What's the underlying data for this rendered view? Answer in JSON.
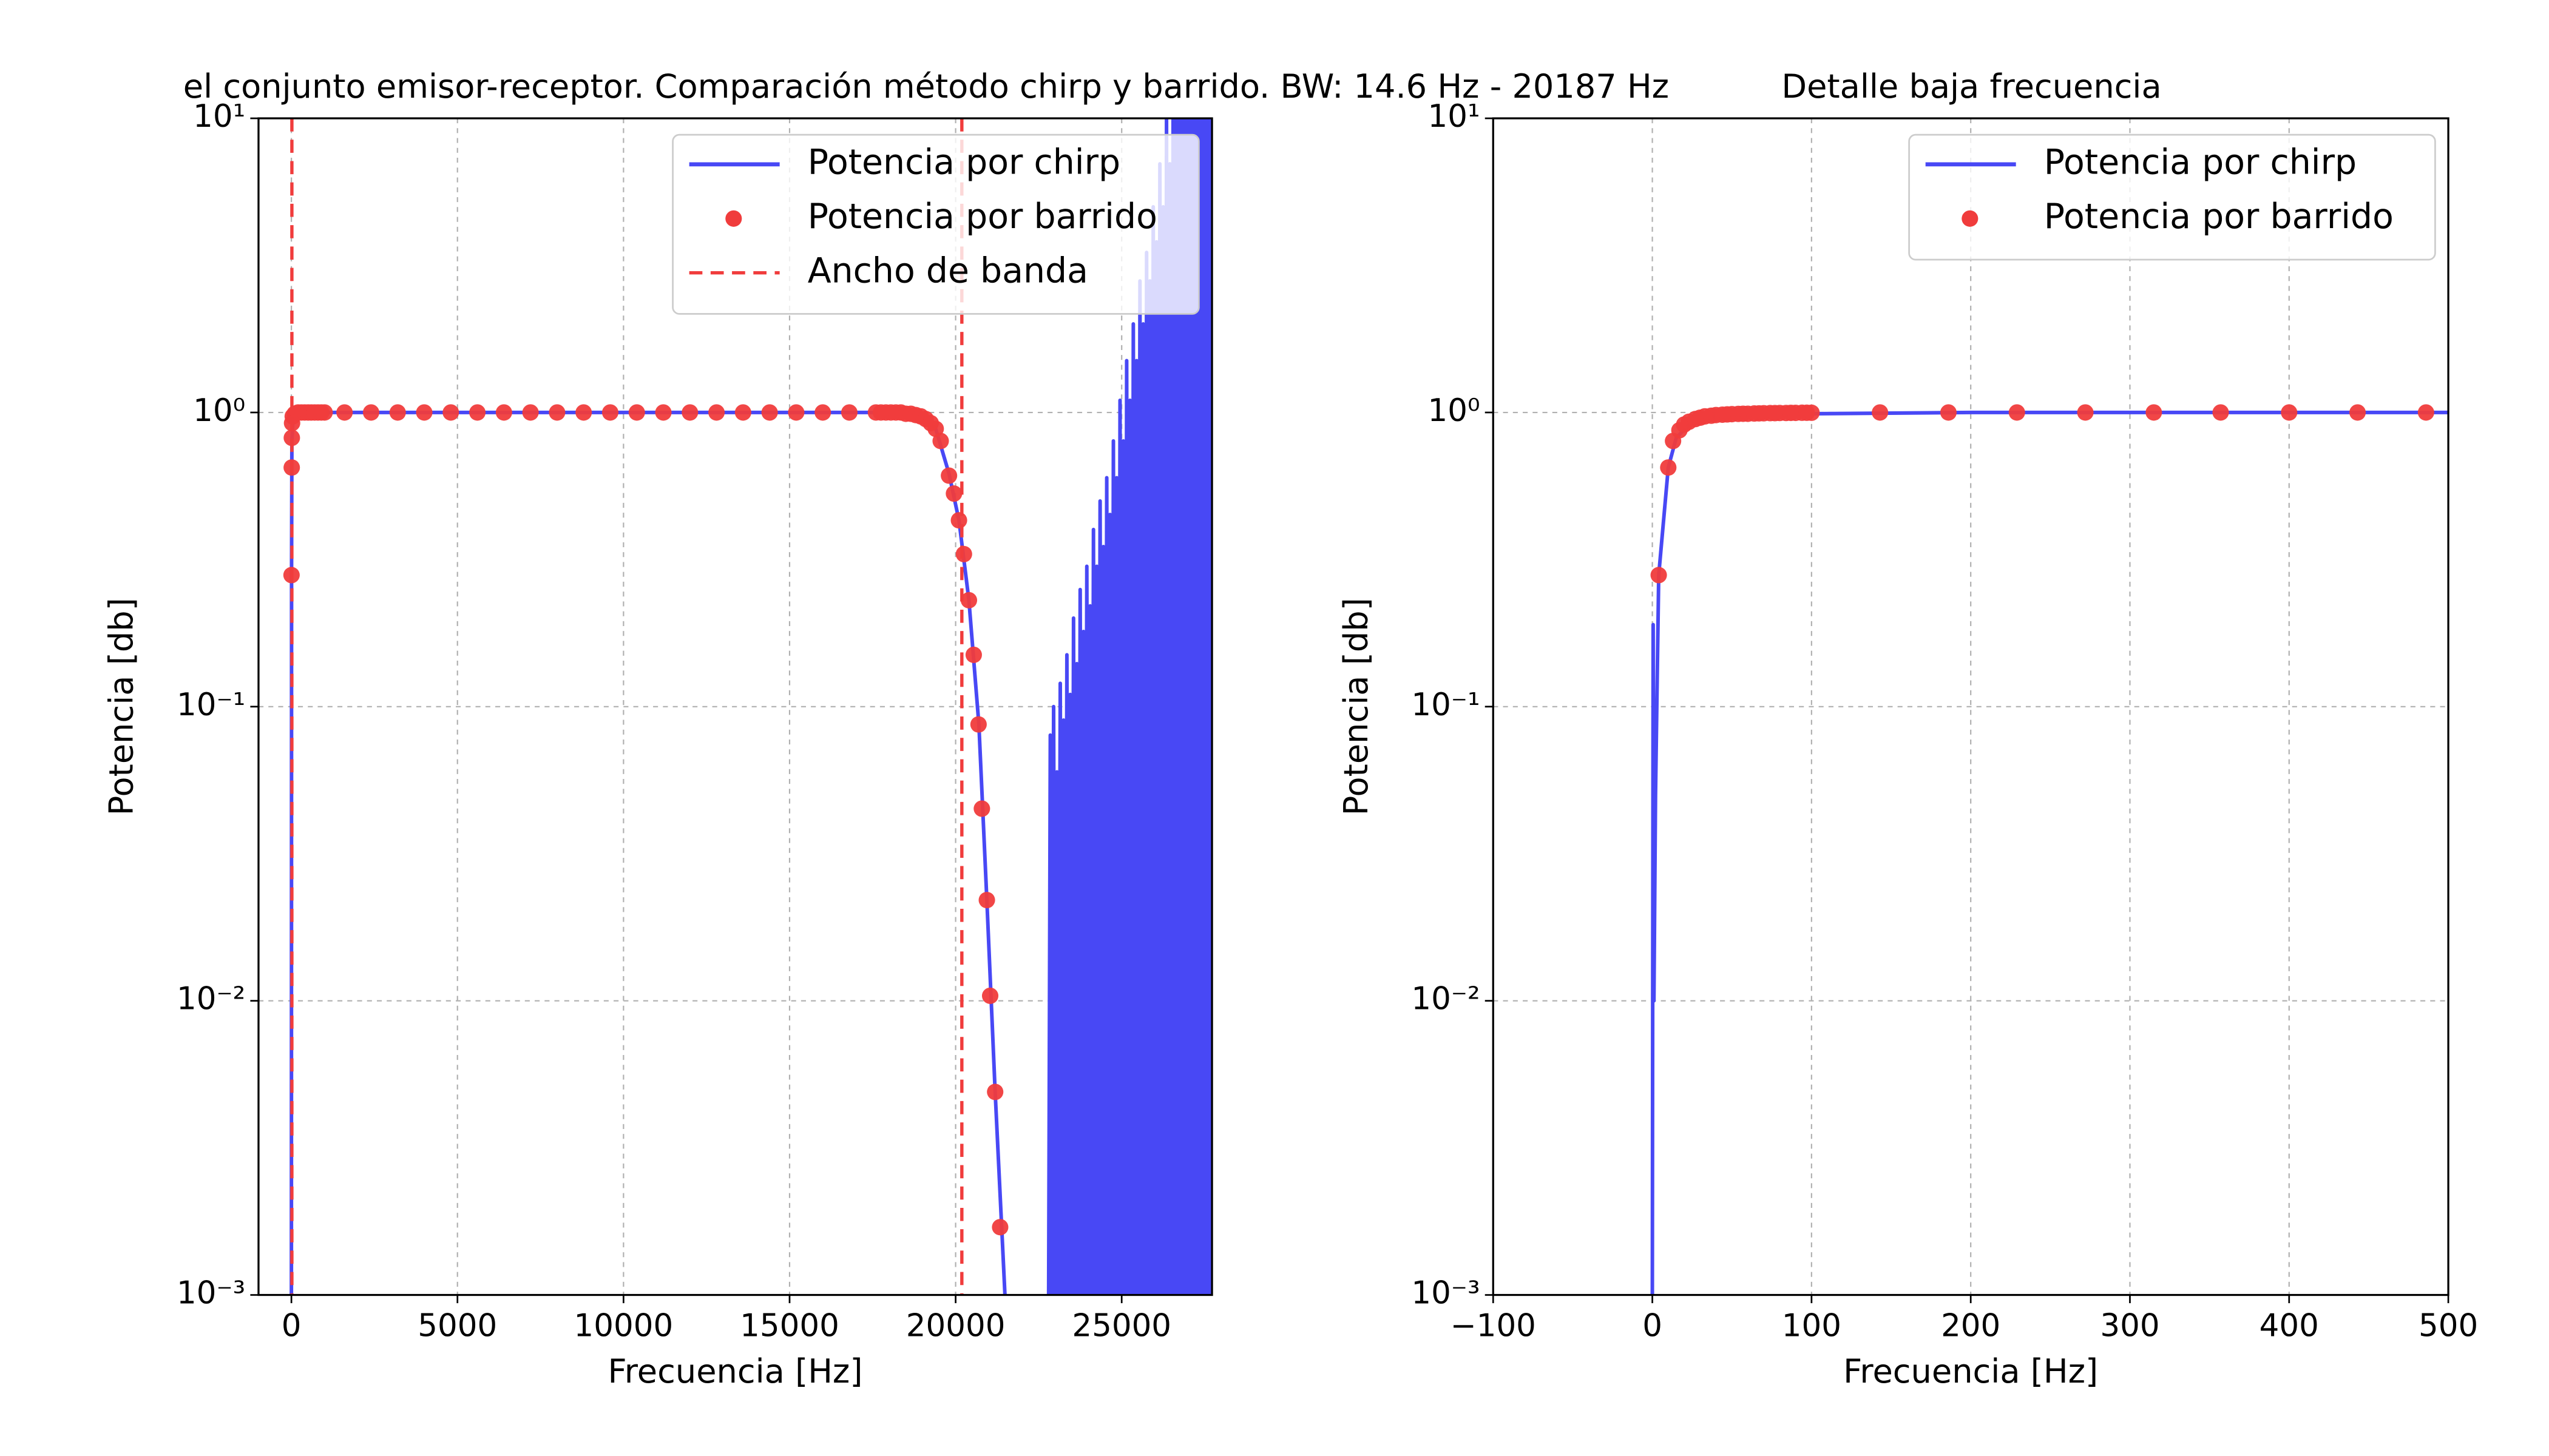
{
  "chart_data": [
    {
      "type": "line",
      "title": "el conjunto emisor-receptor. Comparación método chirp y barrido. BW: 14.6 Hz - 20187 Hz",
      "x_label": "Frecuencia [Hz]",
      "y_label": "Potencia [db]",
      "log_y": true,
      "grid": true,
      "legend": "upper right",
      "xlim": [
        -990,
        27720
      ],
      "ylim": [
        0.001,
        10
      ],
      "xticks": [
        0,
        5000,
        10000,
        15000,
        20000,
        25000
      ],
      "yticks": [
        {
          "value": 0.001,
          "label": "10⁻³"
        },
        {
          "value": 0.01,
          "label": "10⁻²"
        },
        {
          "value": 0.1,
          "label": "10⁻¹"
        },
        {
          "value": 1,
          "label": "10⁰"
        },
        {
          "value": 10,
          "label": "10¹"
        }
      ],
      "series": [
        {
          "name": "Potencia por chirp",
          "style": "line",
          "color": "#4848f5",
          "x": [
            0,
            5,
            15,
            50,
            100,
            1000,
            18000,
            18500,
            19000,
            19400,
            19800,
            20100,
            20400,
            20700,
            20940,
            21190,
            21485,
            22000,
            22800,
            22850,
            22900,
            22950,
            23000,
            23050,
            23100,
            23150,
            23200,
            23250,
            23300,
            23350,
            23400,
            23450,
            23500,
            23550,
            23600,
            23650,
            23700,
            23750,
            23800,
            23850,
            23900,
            23950,
            24000,
            24050,
            24100,
            24150,
            24200,
            24250,
            24300,
            24350,
            24400,
            24450,
            24500,
            24550,
            24600,
            24650,
            24700,
            24750,
            24800,
            24850,
            24900,
            24950,
            25000,
            25050,
            25100,
            25150,
            25200,
            25250,
            25300,
            25350,
            25400,
            25450,
            25500,
            25550,
            25600,
            25650,
            25700,
            25750,
            25800,
            25850,
            25900,
            25950,
            26000,
            26050,
            26100,
            26150,
            26200,
            26250,
            26300,
            26350,
            26400,
            26450,
            26500,
            26550,
            26600,
            26650,
            26700,
            26750,
            26800,
            26850,
            26900,
            26950,
            27000,
            27050,
            27100,
            27150,
            27200,
            27250,
            27300,
            27350,
            27400,
            27450,
            27500,
            27550,
            27600,
            27650,
            27700
          ],
          "values": [
            0.001,
            0.3,
            0.8,
            0.97,
            0.99,
            1,
            1,
            0.99,
            0.97,
            0.88,
            0.62,
            0.43,
            0.23,
            0.087,
            0.022,
            0.0049,
            0.001,
            null,
            0.001,
            0.08,
            0.001,
            0.1,
            0.001,
            0.06,
            0.001,
            0.12,
            0.001,
            0.09,
            0.001,
            0.15,
            0.001,
            0.11,
            0.001,
            0.2,
            0.001,
            0.14,
            0.001,
            0.25,
            0.001,
            0.18,
            0.001,
            0.3,
            0.001,
            0.22,
            0.001,
            0.4,
            0.001,
            0.3,
            0.001,
            0.5,
            0.001,
            0.35,
            0.001,
            0.6,
            0.001,
            0.45,
            0.001,
            0.8,
            0.001,
            0.6,
            0.001,
            1.1,
            0.001,
            0.8,
            0.001,
            1.5,
            0.001,
            1.1,
            0.001,
            2,
            0.001,
            1.5,
            0.001,
            2.8,
            0.001,
            2,
            0.001,
            3.5,
            0.001,
            2.8,
            0.001,
            5,
            0.001,
            3.8,
            0.001,
            7,
            0.001,
            5,
            0.001,
            10,
            0.001,
            7,
            0.001,
            15,
            0.001,
            10,
            0.001,
            20,
            0.001,
            15,
            0.001,
            30,
            0.001,
            20,
            0.001,
            40,
            0.001,
            30,
            0.001,
            50,
            0.001,
            40,
            0.001,
            60,
            0.001,
            50,
            0.001
          ]
        },
        {
          "name": "Potencia por barrido",
          "style": "marker",
          "color": "#f03c3c",
          "x": [
            4,
            10,
            13,
            20,
            40,
            100,
            200,
            300,
            400,
            500,
            600,
            700,
            800,
            900,
            1000,
            1600,
            2400,
            3200,
            4000,
            4800,
            5600,
            6400,
            7200,
            8000,
            8800,
            9600,
            10400,
            11200,
            12000,
            12800,
            13600,
            14400,
            15200,
            16000,
            16800,
            17600,
            17750,
            17900,
            18050,
            18200,
            18350,
            18500,
            18650,
            18800,
            18950,
            19100,
            19250,
            19400,
            19550,
            19800,
            19950,
            20100,
            20250,
            20400,
            20545,
            20690,
            20790,
            20940,
            21040,
            21190,
            21340
          ],
          "values": [
            0.28,
            0.65,
            0.82,
            0.92,
            0.97,
            0.99,
            1,
            1,
            1,
            1,
            1,
            1,
            1,
            1,
            1,
            1,
            1,
            1,
            1,
            1,
            1,
            1,
            1,
            1,
            1,
            1,
            1,
            1,
            1,
            1,
            1,
            1,
            1,
            1,
            1,
            1,
            1,
            1,
            1,
            1,
            1,
            0.99,
            0.99,
            0.98,
            0.97,
            0.95,
            0.92,
            0.88,
            0.8,
            0.61,
            0.53,
            0.43,
            0.33,
            0.23,
            0.15,
            0.087,
            0.045,
            0.022,
            0.0104,
            0.0049,
            0.0017
          ]
        },
        {
          "name": "Ancho de banda",
          "style": "vline",
          "color": "#f03c3c",
          "x": [
            14.6,
            20187
          ]
        }
      ]
    },
    {
      "type": "line",
      "title": "Detalle baja frecuencia",
      "x_label": "Frecuencia [Hz]",
      "y_label": "Potencia [db]",
      "log_y": true,
      "grid": true,
      "legend": "upper right",
      "xlim": [
        -100,
        500
      ],
      "ylim": [
        0.001,
        10
      ],
      "xticks": [
        {
          "value": -100,
          "label": "−100"
        },
        0,
        100,
        200,
        300,
        400,
        500
      ],
      "yticks": [
        {
          "value": 0.001,
          "label": "10⁻³"
        },
        {
          "value": 0.01,
          "label": "10⁻²"
        },
        {
          "value": 0.1,
          "label": "10⁻¹"
        },
        {
          "value": 1,
          "label": "10⁰"
        },
        {
          "value": 10,
          "label": "10¹"
        }
      ],
      "series": [
        {
          "name": "Potencia por chirp",
          "style": "line",
          "color": "#4848f5",
          "x": [
            0,
            0.5,
            1,
            2,
            4,
            10,
            15,
            25,
            40,
            60,
            100,
            200,
            500
          ],
          "values": [
            0.001,
            0.19,
            0.01,
            0.05,
            0.28,
            0.65,
            0.82,
            0.93,
            0.97,
            0.985,
            0.99,
            1,
            1
          ]
        },
        {
          "name": "Potencia por barrido",
          "style": "marker",
          "color": "#f03c3c",
          "x": [
            4,
            10,
            13,
            17,
            20,
            23,
            27,
            30,
            33,
            37,
            40,
            44,
            47,
            50,
            54,
            57,
            60,
            64,
            67,
            70,
            74,
            77,
            80,
            84,
            87,
            90,
            94,
            97,
            100,
            143,
            186,
            229,
            272,
            315,
            357,
            400,
            443,
            486
          ],
          "values": [
            0.28,
            0.65,
            0.8,
            0.87,
            0.91,
            0.93,
            0.95,
            0.96,
            0.97,
            0.975,
            0.98,
            0.983,
            0.985,
            0.987,
            0.989,
            0.99,
            0.99,
            0.992,
            0.993,
            0.994,
            0.995,
            0.995,
            0.996,
            0.996,
            0.997,
            0.997,
            0.998,
            0.998,
            0.998,
            1,
            1,
            1,
            1,
            1,
            1,
            1,
            1,
            1
          ]
        }
      ]
    }
  ]
}
